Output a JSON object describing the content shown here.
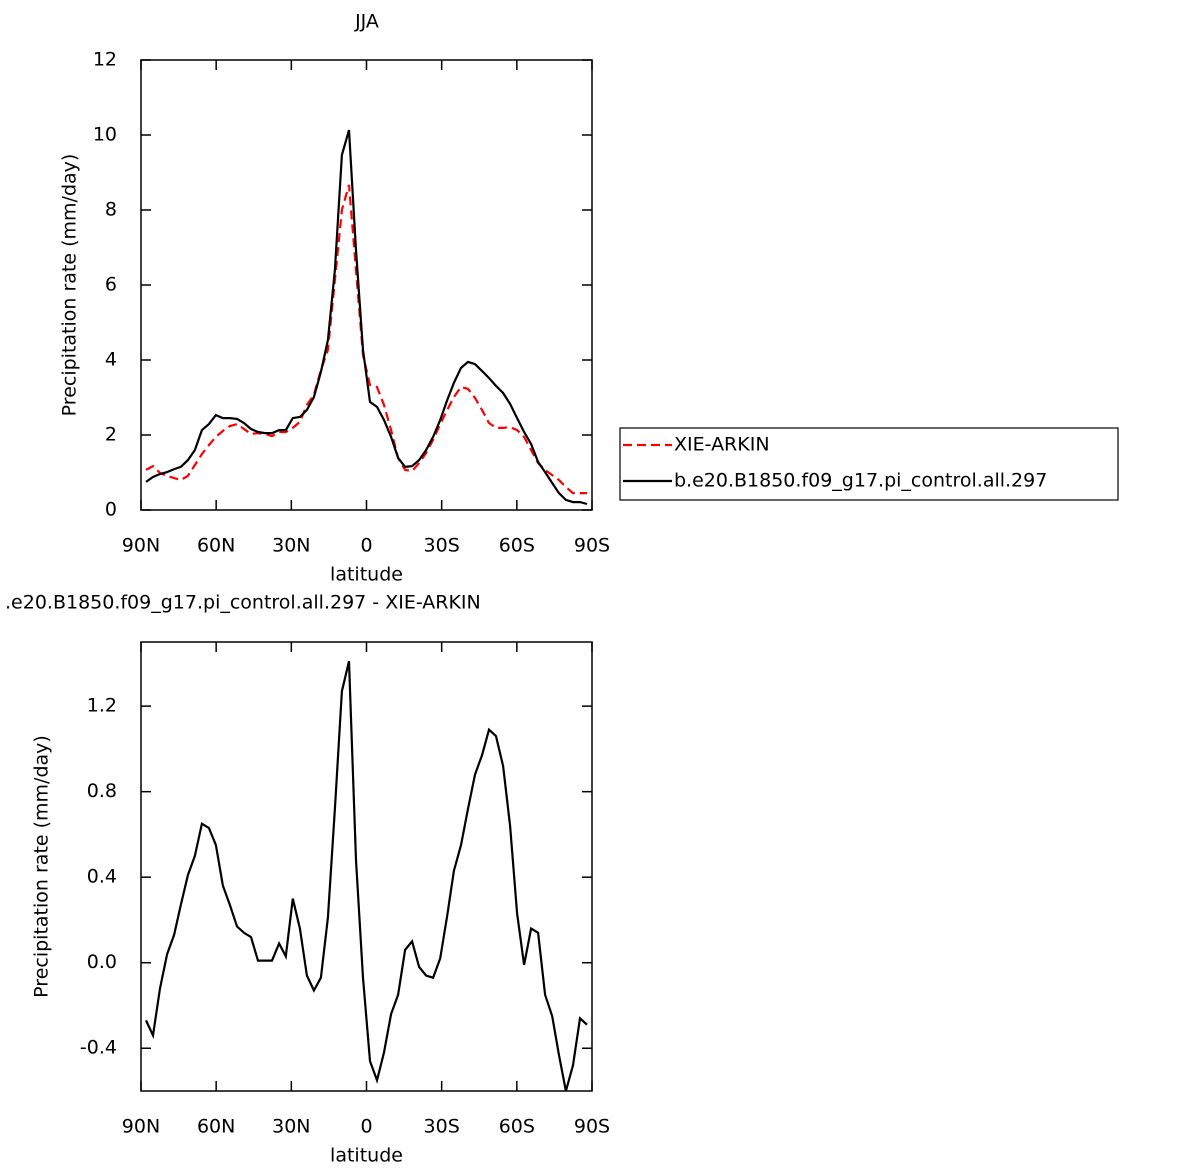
{
  "chart_data": [
    {
      "type": "line",
      "title": "JJA",
      "xlabel": "latitude",
      "ylabel": "Precipitation rate (mm/day)",
      "x": [
        88.0,
        85.2,
        82.4,
        79.6,
        76.8,
        74.1,
        71.3,
        68.5,
        65.7,
        62.9,
        60.1,
        57.3,
        54.5,
        51.7,
        48.9,
        46.1,
        43.3,
        40.5,
        37.7,
        34.9,
        32.2,
        29.4,
        26.6,
        23.8,
        21.0,
        18.2,
        15.4,
        12.6,
        9.8,
        7.0,
        4.2,
        1.4,
        -1.4,
        -4.2,
        -7.0,
        -9.8,
        -12.6,
        -15.4,
        -18.2,
        -21.0,
        -23.8,
        -26.6,
        -29.4,
        -32.2,
        -34.9,
        -37.7,
        -40.5,
        -43.3,
        -46.1,
        -48.9,
        -51.7,
        -54.5,
        -57.3,
        -60.1,
        -62.9,
        -65.7,
        -68.5,
        -71.3,
        -74.1,
        -76.8,
        -79.6,
        -82.4,
        -85.2,
        -88.0
      ],
      "series": [
        {
          "name": "XIE-ARKIN",
          "color": "#ff0000",
          "line_style": "dashed",
          "values": [
            1.07,
            1.17,
            0.99,
            0.91,
            0.85,
            0.8,
            0.91,
            1.2,
            1.49,
            1.73,
            1.95,
            2.11,
            2.24,
            2.29,
            2.16,
            2.03,
            2.05,
            2.03,
            1.97,
            2.08,
            2.08,
            2.19,
            2.35,
            2.8,
            3.07,
            3.73,
            4.27,
            6.13,
            8.0,
            8.67,
            6.4,
            4.13,
            3.33,
            3.28,
            2.8,
            2.13,
            1.39,
            1.07,
            1.04,
            1.25,
            1.52,
            1.87,
            2.29,
            2.67,
            3.01,
            3.28,
            3.23,
            2.99,
            2.67,
            2.32,
            2.19,
            2.19,
            2.21,
            2.13,
            1.95,
            1.6,
            1.25,
            1.07,
            0.93,
            0.8,
            0.61,
            0.45,
            0.45,
            0.45
          ]
        },
        {
          "name": "b.e20.B1850.f09_g17.pi_control.all.297",
          "color": "#000000",
          "line_style": "solid",
          "values": [
            0.75,
            0.88,
            0.96,
            1.01,
            1.09,
            1.15,
            1.33,
            1.6,
            2.13,
            2.29,
            2.53,
            2.45,
            2.45,
            2.43,
            2.32,
            2.16,
            2.08,
            2.05,
            2.05,
            2.13,
            2.13,
            2.45,
            2.48,
            2.67,
            3.01,
            3.68,
            4.53,
            6.4,
            9.47,
            10.13,
            6.93,
            4.27,
            2.88,
            2.75,
            2.4,
            1.95,
            1.39,
            1.15,
            1.17,
            1.33,
            1.6,
            1.95,
            2.4,
            2.93,
            3.39,
            3.79,
            3.95,
            3.89,
            3.71,
            3.52,
            3.31,
            3.12,
            2.83,
            2.45,
            2.08,
            1.76,
            1.28,
            1.01,
            0.72,
            0.45,
            0.27,
            0.21,
            0.21,
            0.16
          ]
        }
      ],
      "xlim": [
        90,
        -90
      ],
      "xticks": [
        {
          "value": 90,
          "label": "90N"
        },
        {
          "value": 60,
          "label": "60N"
        },
        {
          "value": 30,
          "label": "30N"
        },
        0,
        {
          "value": -30,
          "label": "30S"
        },
        {
          "value": -60,
          "label": "60S"
        },
        {
          "value": -90,
          "label": "90S"
        }
      ],
      "ylim": [
        0,
        12
      ],
      "yticks": [
        0,
        2,
        4,
        6,
        8,
        10,
        12
      ],
      "legend": "right"
    },
    {
      "type": "line",
      "title": ".e20.B1850.f09_g17.pi_control.all.297 - XIE-ARKIN",
      "xlabel": "latitude",
      "ylabel": "Precipitation rate (mm/day)",
      "x": [
        88.0,
        85.2,
        82.4,
        79.6,
        76.8,
        74.1,
        71.3,
        68.5,
        65.7,
        62.9,
        60.1,
        57.3,
        54.5,
        51.7,
        48.9,
        46.1,
        43.3,
        40.5,
        37.7,
        34.9,
        32.2,
        29.4,
        26.6,
        23.8,
        21.0,
        18.2,
        15.4,
        12.6,
        9.8,
        7.0,
        4.2,
        1.4,
        -1.4,
        -4.2,
        -7.0,
        -9.8,
        -12.6,
        -15.4,
        -18.2,
        -21.0,
        -23.8,
        -26.6,
        -29.4,
        -32.2,
        -34.9,
        -37.7,
        -40.5,
        -43.3,
        -46.1,
        -48.9,
        -51.7,
        -54.5,
        -57.3,
        -60.1,
        -62.9,
        -65.7,
        -68.5,
        -71.3,
        -74.1,
        -76.8,
        -79.6,
        -82.4,
        -85.2,
        -88.0
      ],
      "color": "#000000",
      "values": [
        -0.27,
        -0.34,
        -0.12,
        0.04,
        0.13,
        0.27,
        0.41,
        0.5,
        0.65,
        0.63,
        0.55,
        0.36,
        0.27,
        0.17,
        0.14,
        0.12,
        0.01,
        0.01,
        0.01,
        0.09,
        0.03,
        0.3,
        0.16,
        -0.06,
        -0.13,
        -0.07,
        0.21,
        0.72,
        1.27,
        1.41,
        0.48,
        -0.07,
        -0.46,
        -0.55,
        -0.42,
        -0.24,
        -0.15,
        0.06,
        0.1,
        -0.02,
        -0.06,
        -0.07,
        0.02,
        0.22,
        0.43,
        0.55,
        0.72,
        0.88,
        0.97,
        1.09,
        1.06,
        0.92,
        0.64,
        0.23,
        -0.01,
        0.16,
        0.14,
        -0.15,
        -0.25,
        -0.43,
        -0.6,
        -0.48,
        -0.26,
        -0.29
      ],
      "xlim": [
        90,
        -90
      ],
      "xticks": [
        {
          "value": 90,
          "label": "90N"
        },
        {
          "value": 60,
          "label": "60N"
        },
        {
          "value": 30,
          "label": "30N"
        },
        0,
        {
          "value": -30,
          "label": "30S"
        },
        {
          "value": -60,
          "label": "60S"
        },
        {
          "value": -90,
          "label": "90S"
        }
      ],
      "ylim": [
        -0.6,
        1.5
      ],
      "yticks": [
        {
          "value": -0.4,
          "label": "-0.4"
        },
        {
          "value": 0,
          "label": "0.0"
        },
        0.4,
        0.8,
        1.2
      ]
    }
  ]
}
